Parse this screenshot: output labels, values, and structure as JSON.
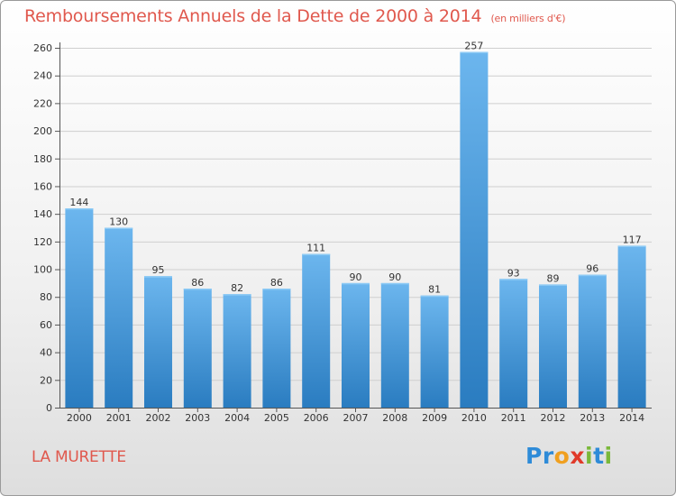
{
  "title": "Remboursements Annuels de la Dette de 2000 à 2014",
  "subtitle": "(en milliers d'€)",
  "city": "LA MURETTE",
  "logo": {
    "text": "Proxiti",
    "letters": [
      {
        "ch": "P",
        "color": "#2e8bd8"
      },
      {
        "ch": "r",
        "color": "#2e8bd8"
      },
      {
        "ch": "o",
        "color": "#f0a020"
      },
      {
        "ch": "x",
        "color": "#e03a2a"
      },
      {
        "ch": "i",
        "color": "#7ab83a"
      },
      {
        "ch": "t",
        "color": "#2e8bd8"
      },
      {
        "ch": "i",
        "color": "#7ab83a"
      }
    ]
  },
  "colors": {
    "title": "#e0584d",
    "bar_light": "#6cb6ee",
    "bar_dark": "#2a7cc0",
    "grid": "#cfcfcf"
  },
  "chart_data": {
    "type": "bar",
    "categories": [
      "2000",
      "2001",
      "2002",
      "2003",
      "2004",
      "2005",
      "2006",
      "2007",
      "2008",
      "2009",
      "2010",
      "2011",
      "2012",
      "2013",
      "2014"
    ],
    "values": [
      144,
      130,
      95,
      86,
      82,
      86,
      111,
      90,
      90,
      81,
      257,
      93,
      89,
      96,
      117
    ],
    "ylim": [
      0,
      260
    ],
    "yticks": [
      0,
      20,
      40,
      60,
      80,
      100,
      120,
      140,
      160,
      180,
      200,
      220,
      240,
      260
    ],
    "grid": true,
    "data_labels": true
  }
}
